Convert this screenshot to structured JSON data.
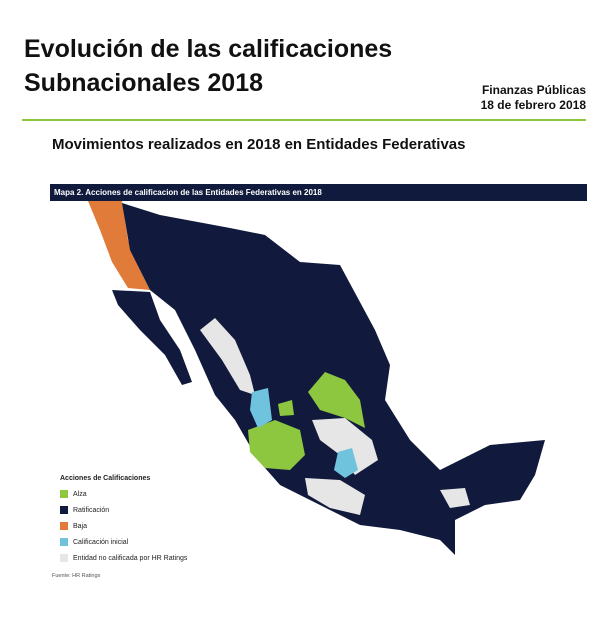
{
  "header": {
    "title": "Evolución de las calificaciones Subnacionales 2018",
    "publication": "Finanzas Públicas",
    "date": "18 de febrero 2018"
  },
  "subtitle": "Movimientos realizados en 2018 en Entidades Federativas",
  "map": {
    "caption": "Mapa 2. Acciones de calificacion de las Entidades Federativas en 2018",
    "legend": {
      "title": "Acciones de Calificaciones",
      "items": [
        {
          "label": "Alza",
          "color": "#8dc63f"
        },
        {
          "label": "Ratificación",
          "color": "#111a3d"
        },
        {
          "label": "Baja",
          "color": "#e07b39"
        },
        {
          "label": "Calificación inicial",
          "color": "#6fc3dd"
        },
        {
          "label": "Entidad no calificada por HR Ratings",
          "color": "#e6e6e6"
        }
      ]
    },
    "source": "Fuente: HR Ratings"
  }
}
